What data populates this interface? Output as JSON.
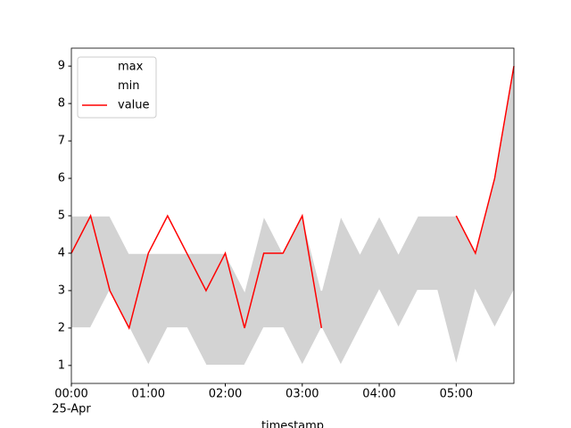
{
  "chart_data": {
    "type": "line",
    "x": [
      "00:00",
      "00:15",
      "00:30",
      "00:45",
      "01:00",
      "01:15",
      "01:30",
      "01:45",
      "02:00",
      "02:15",
      "02:30",
      "02:45",
      "03:00",
      "03:15",
      "03:30",
      "03:45",
      "04:00",
      "04:15",
      "04:30",
      "04:45",
      "05:00",
      "05:15",
      "05:30",
      "05:45"
    ],
    "date_label": "25-Apr",
    "xlabel": "timestamp",
    "xticks": [
      "00:00",
      "01:00",
      "02:00",
      "03:00",
      "04:00",
      "05:00"
    ],
    "ylim": [
      0.52,
      9.48
    ],
    "yticks": [
      1,
      2,
      3,
      4,
      5,
      6,
      7,
      8,
      9
    ],
    "fill_between": [
      "max",
      "min"
    ],
    "fill_color": "lightgray",
    "legend": "upper left",
    "series": [
      {
        "name": "max",
        "color": "white",
        "values": [
          5,
          5,
          5,
          4,
          4,
          4,
          4,
          4,
          4,
          3,
          5,
          4,
          5,
          3,
          5,
          4,
          5,
          4,
          5,
          5,
          5,
          4,
          6,
          9
        ]
      },
      {
        "name": "min",
        "color": "white",
        "values": [
          2,
          2,
          3,
          2,
          1,
          2,
          2,
          1,
          1,
          1,
          2,
          2,
          1,
          2,
          1,
          2,
          3,
          2,
          3,
          3,
          1,
          3,
          2,
          3
        ]
      },
      {
        "name": "value",
        "color": "red",
        "values": [
          4,
          5,
          3,
          2,
          4,
          5,
          4,
          3,
          4,
          2,
          4,
          4,
          5,
          2,
          null,
          null,
          null,
          null,
          null,
          null,
          5,
          4,
          6,
          9
        ]
      }
    ]
  }
}
